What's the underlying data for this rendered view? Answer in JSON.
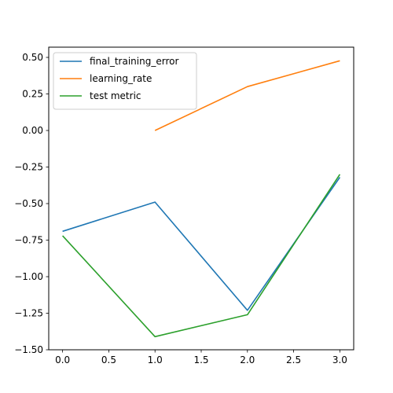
{
  "chart_data": {
    "type": "line",
    "title": "",
    "xlabel": "",
    "ylabel": "",
    "xlim": [
      -0.15,
      3.15
    ],
    "ylim": [
      -1.5,
      0.57
    ],
    "grid": false,
    "legend_position": "top-left",
    "xticks": [
      {
        "value": 0.0,
        "label": "0.0"
      },
      {
        "value": 0.5,
        "label": "0.5"
      },
      {
        "value": 1.0,
        "label": "1.0"
      },
      {
        "value": 1.5,
        "label": "1.5"
      },
      {
        "value": 2.0,
        "label": "2.0"
      },
      {
        "value": 2.5,
        "label": "2.5"
      },
      {
        "value": 3.0,
        "label": "3.0"
      }
    ],
    "yticks": [
      {
        "value": 0.5,
        "label": "0.50"
      },
      {
        "value": 0.25,
        "label": "0.25"
      },
      {
        "value": 0.0,
        "label": "0.00"
      },
      {
        "value": -0.25,
        "label": "−0.25"
      },
      {
        "value": -0.5,
        "label": "−0.50"
      },
      {
        "value": -0.75,
        "label": "−0.75"
      },
      {
        "value": -1.0,
        "label": "−1.00"
      },
      {
        "value": -1.25,
        "label": "−1.25"
      },
      {
        "value": -1.5,
        "label": "−1.50"
      }
    ],
    "series": [
      {
        "name": "final_training_error",
        "color": "#1f77b4",
        "x": [
          0,
          1,
          2,
          3
        ],
        "y": [
          -0.69,
          -0.49,
          -1.23,
          -0.32
        ]
      },
      {
        "name": "learning_rate",
        "color": "#ff7f0e",
        "x": [
          1,
          2,
          3
        ],
        "y": [
          0.0,
          0.3,
          0.477
        ]
      },
      {
        "name": "test metric",
        "color": "#2ca02c",
        "x": [
          0,
          1,
          2,
          3
        ],
        "y": [
          -0.72,
          -1.41,
          -1.26,
          -0.3
        ]
      }
    ]
  }
}
